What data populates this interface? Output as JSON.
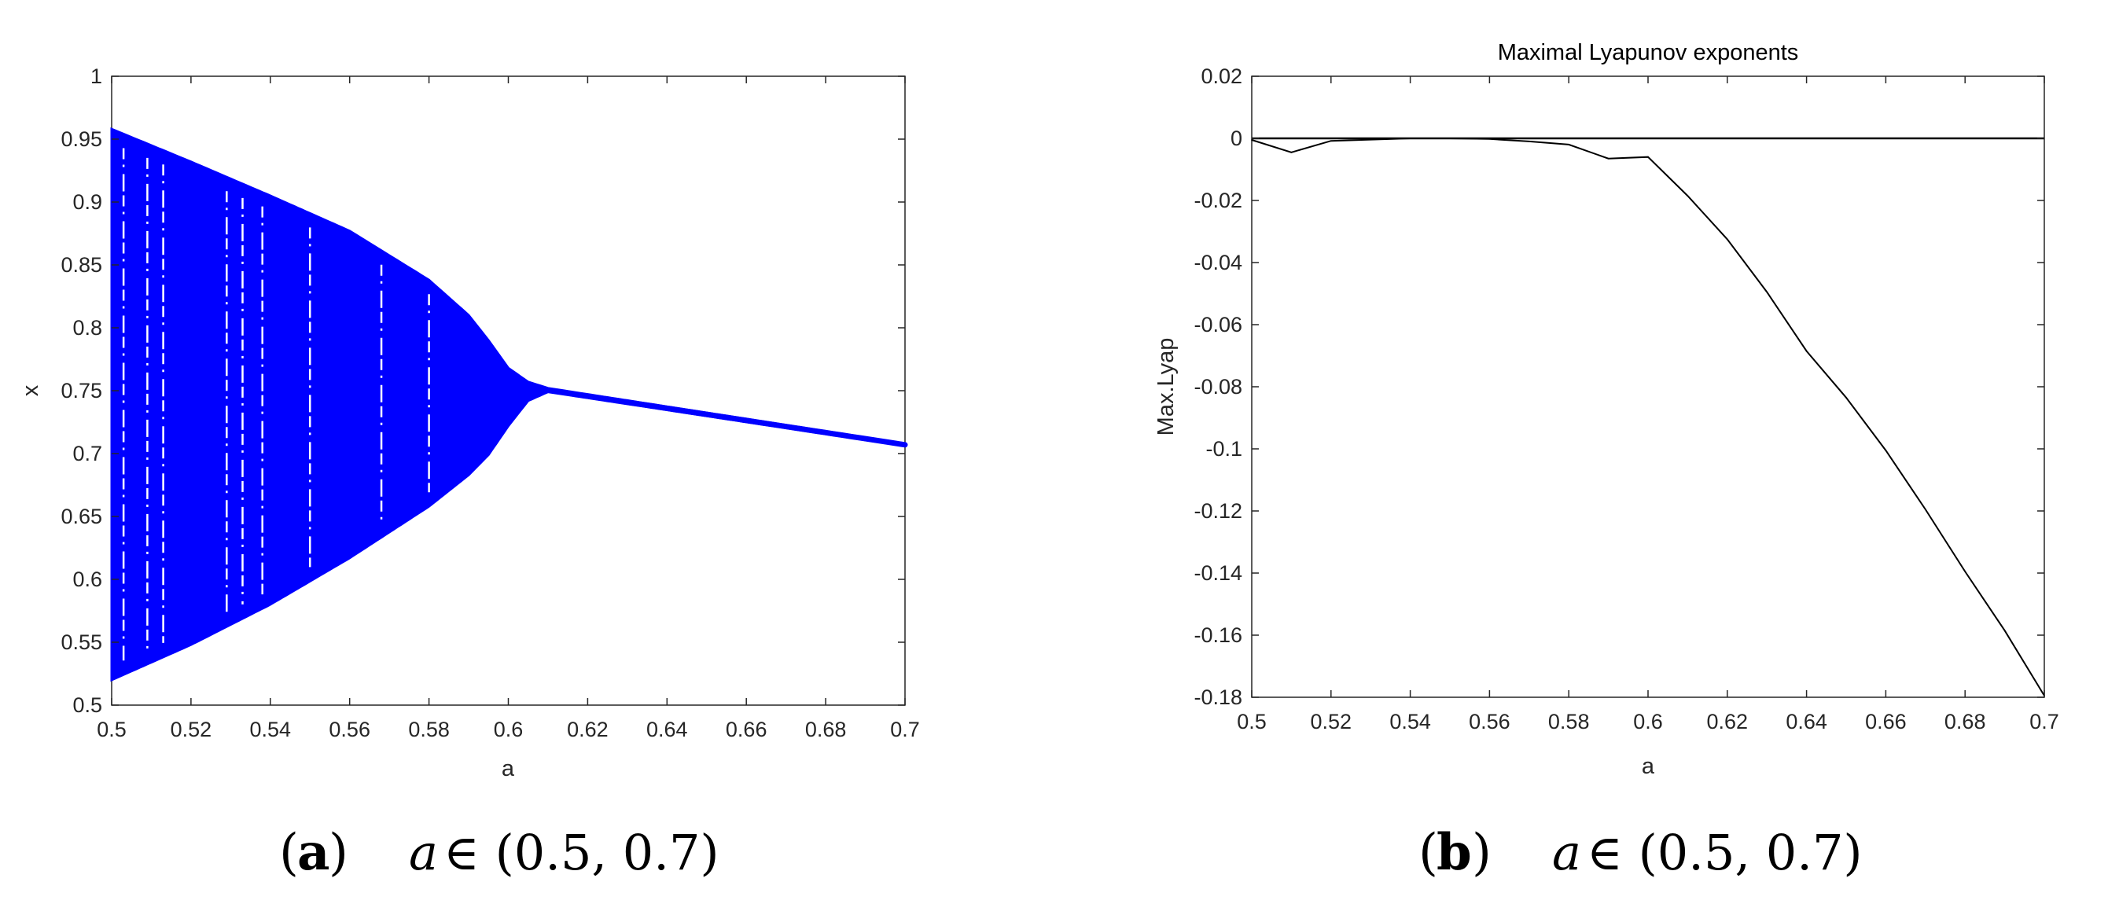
{
  "chart_data": [
    {
      "type": "scatter",
      "panel": "a",
      "title": "",
      "xlabel": "a",
      "ylabel": "x",
      "xlim": [
        0.5,
        0.7
      ],
      "ylim": [
        0.5,
        1.0
      ],
      "x_ticks": [
        "0.5",
        "0.52",
        "0.54",
        "0.56",
        "0.58",
        "0.6",
        "0.62",
        "0.64",
        "0.66",
        "0.68",
        "0.7"
      ],
      "y_ticks": [
        "0.5",
        "0.55",
        "0.6",
        "0.65",
        "0.7",
        "0.75",
        "0.8",
        "0.85",
        "0.9",
        "0.95",
        "1"
      ],
      "color": "#0000ff",
      "upper_envelope": {
        "x": [
          0.5,
          0.52,
          0.54,
          0.56,
          0.58,
          0.59,
          0.595,
          0.6,
          0.605,
          0.61,
          0.7
        ],
        "y": [
          0.958,
          0.932,
          0.905,
          0.877,
          0.838,
          0.81,
          0.79,
          0.768,
          0.757,
          0.752,
          0.708
        ]
      },
      "lower_envelope": {
        "x": [
          0.5,
          0.52,
          0.54,
          0.56,
          0.58,
          0.59,
          0.595,
          0.6,
          0.605,
          0.61,
          0.7
        ],
        "y": [
          0.52,
          0.548,
          0.58,
          0.617,
          0.658,
          0.683,
          0.699,
          0.722,
          0.742,
          0.749,
          0.706
        ]
      },
      "periodic_windows": [
        0.503,
        0.509,
        0.513,
        0.529,
        0.533,
        0.538,
        0.55,
        0.568,
        0.58
      ]
    },
    {
      "type": "line",
      "panel": "b",
      "title": "Maximal Lyapunov exponents",
      "xlabel": "a",
      "ylabel": "Max.Lyap",
      "xlim": [
        0.5,
        0.7
      ],
      "ylim": [
        -0.18,
        0.02
      ],
      "x_ticks": [
        "0.5",
        "0.52",
        "0.54",
        "0.56",
        "0.58",
        "0.6",
        "0.62",
        "0.64",
        "0.66",
        "0.68",
        "0.7"
      ],
      "y_ticks": [
        "0.02",
        "0",
        "-0.02",
        "-0.04",
        "-0.06",
        "-0.08",
        "-0.1",
        "-0.12",
        "-0.14",
        "-0.16",
        "-0.18"
      ],
      "color": "#000000",
      "series": [
        {
          "name": "Max.Lyap",
          "x": [
            0.5,
            0.51,
            0.52,
            0.53,
            0.54,
            0.55,
            0.56,
            0.57,
            0.58,
            0.59,
            0.6,
            0.61,
            0.62,
            0.63,
            0.64,
            0.65,
            0.66,
            0.67,
            0.68,
            0.69,
            0.7
          ],
          "values": [
            -0.0005,
            -0.0045,
            -0.0008,
            -0.0004,
            0.0,
            0.0,
            -0.0002,
            -0.001,
            -0.002,
            -0.0065,
            -0.006,
            -0.0185,
            -0.0325,
            -0.0495,
            -0.0685,
            -0.0835,
            -0.1005,
            -0.1195,
            -0.1395,
            -0.1585,
            -0.1795
          ]
        },
        {
          "name": "zero",
          "x": [
            0.5,
            0.7
          ],
          "values": [
            0.0,
            0.0
          ]
        }
      ]
    }
  ],
  "captions": {
    "a": {
      "letter": "a",
      "variable": "a",
      "relation": "∈ (0.5, 0.7)"
    },
    "b": {
      "letter": "b",
      "variable": "a",
      "relation": "∈ (0.5, 0.7)"
    }
  }
}
